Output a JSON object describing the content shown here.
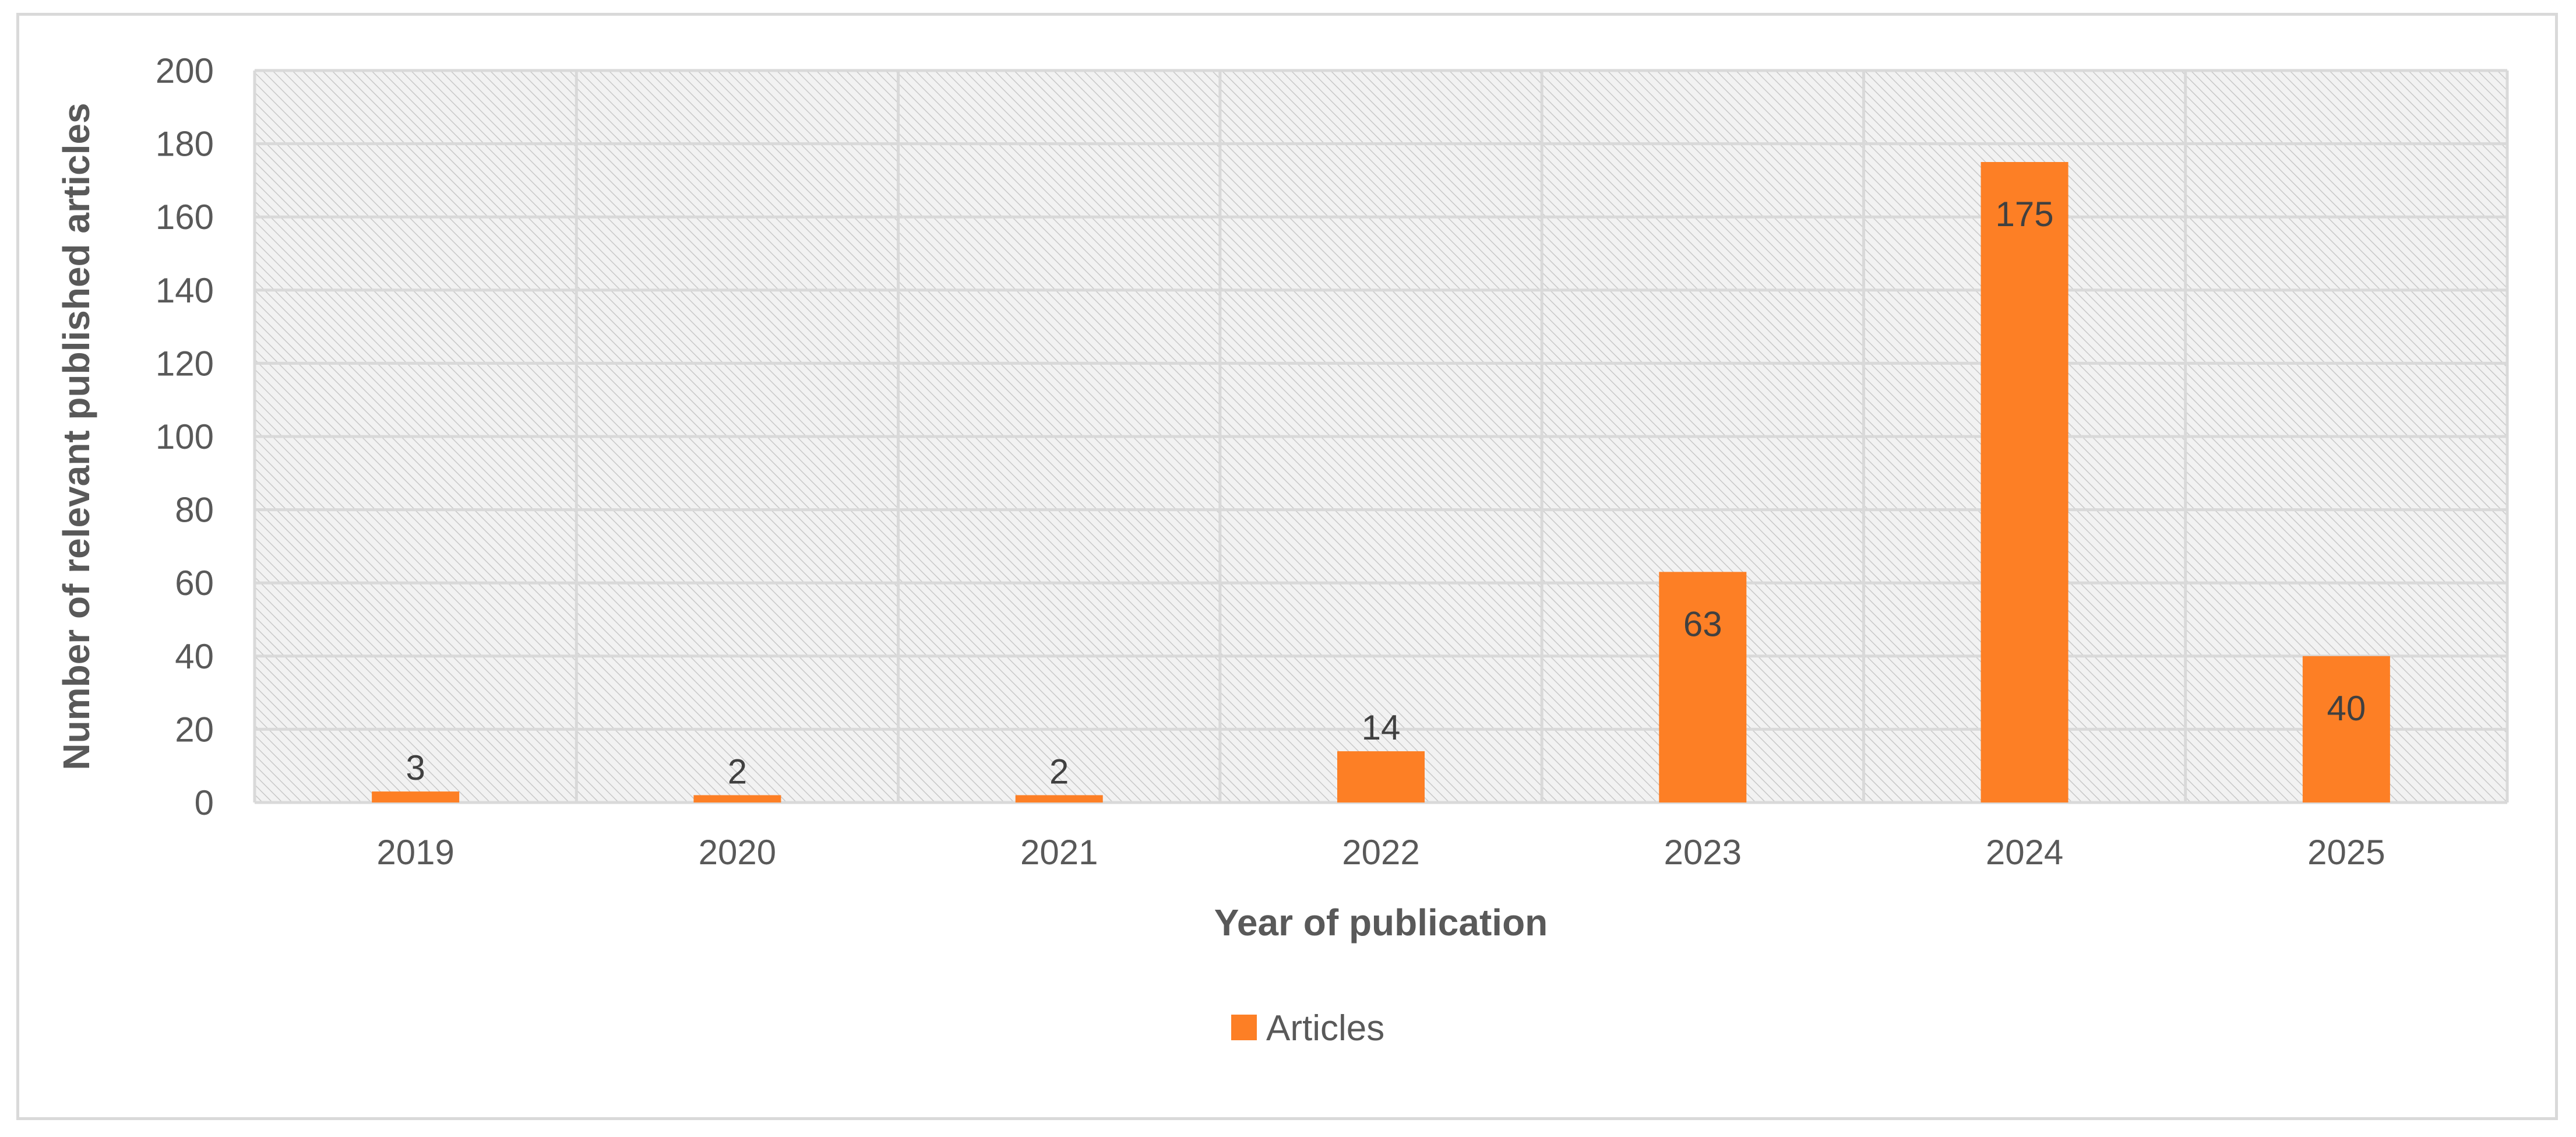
{
  "chart_data": {
    "type": "bar",
    "title": "",
    "xlabel": "Year of publication",
    "ylabel": "Number of relevant published articles",
    "categories": [
      "2019",
      "2020",
      "2021",
      "2022",
      "2023",
      "2024",
      "2025"
    ],
    "series": [
      {
        "name": "Articles",
        "values": [
          3,
          2,
          2,
          14,
          63,
          175,
          40
        ],
        "color": "#fd7f25"
      }
    ],
    "ylim": [
      0,
      200
    ],
    "yticks": [
      0,
      20,
      40,
      60,
      80,
      100,
      120,
      140,
      160,
      180,
      200
    ],
    "grid": true,
    "legend_position": "bottom"
  }
}
